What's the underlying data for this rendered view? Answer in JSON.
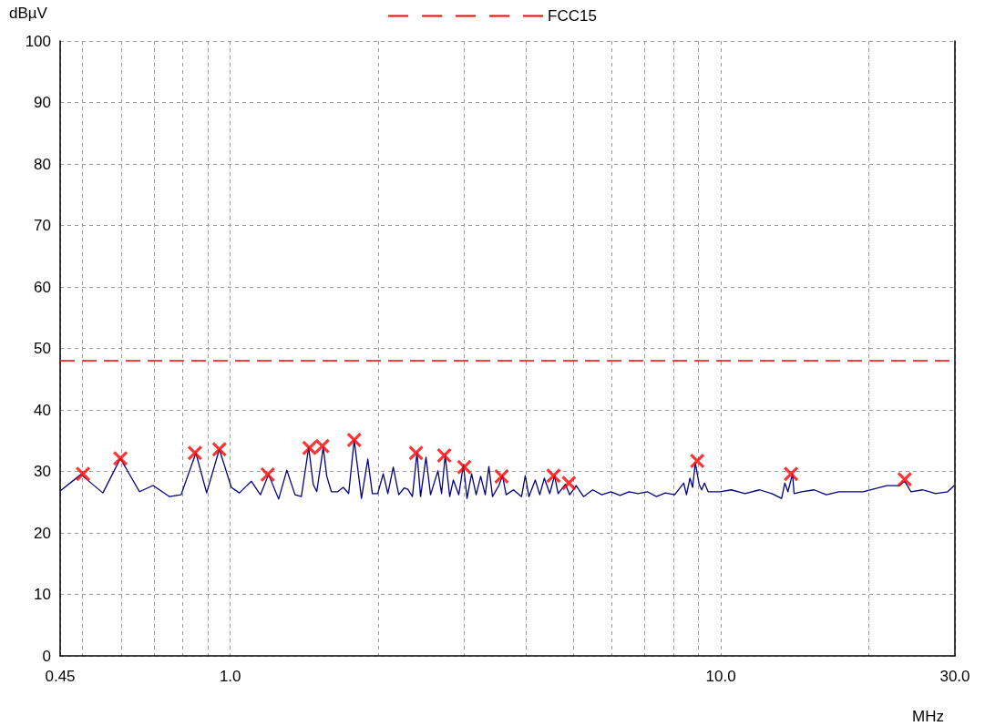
{
  "chart_data": {
    "type": "line",
    "xlabel": "MHz",
    "ylabel": "dBµV",
    "log": "x",
    "grid": true,
    "legend": "top",
    "marker": "none",
    "line_style": "solid",
    "xlim": [
      0.45,
      30
    ],
    "ylim": [
      0,
      100
    ],
    "xticks": [
      {
        "value": 0.45,
        "label": "0.45"
      },
      {
        "value": 0.5,
        "label": null
      },
      {
        "value": 0.6,
        "label": null
      },
      {
        "value": 0.7,
        "label": null
      },
      {
        "value": 0.8,
        "label": null
      },
      {
        "value": 0.9,
        "label": null
      },
      {
        "value": 1,
        "label": "1.0"
      },
      {
        "value": 2,
        "label": null
      },
      {
        "value": 3,
        "label": null
      },
      {
        "value": 4,
        "label": null
      },
      {
        "value": 5,
        "label": null
      },
      {
        "value": 6,
        "label": null
      },
      {
        "value": 7,
        "label": null
      },
      {
        "value": 8,
        "label": null
      },
      {
        "value": 9,
        "label": null
      },
      {
        "value": 10,
        "label": "10.0"
      },
      {
        "value": 20,
        "label": null
      },
      {
        "value": 30,
        "label": "30.0"
      }
    ],
    "yticks": [
      0,
      10,
      20,
      30,
      40,
      50,
      60,
      70,
      80,
      90,
      100
    ],
    "ref_lines": [
      {
        "axis": "y",
        "value": 48,
        "label": "FCC15",
        "color": "#ff0000",
        "line_style": "dashed"
      }
    ],
    "series": [
      {
        "color": "#000080",
        "x": [
          0.45,
          0.496,
          0.55,
          0.597,
          0.653,
          0.696,
          0.752,
          0.794,
          0.851,
          0.895,
          0.95,
          1.005,
          1.044,
          1.104,
          1.152,
          1.197,
          1.255,
          1.304,
          1.355,
          1.396,
          1.445,
          1.476,
          1.501,
          1.547,
          1.573,
          1.607,
          1.656,
          1.699,
          1.743,
          1.789,
          1.851,
          1.907,
          1.948,
          1.998,
          2.05,
          2.095,
          2.149,
          2.205,
          2.262,
          2.301,
          2.351,
          2.402,
          2.443,
          2.506,
          2.56,
          2.65,
          2.696,
          2.742,
          2.801,
          2.849,
          2.923,
          2.987,
          3.038,
          3.104,
          3.171,
          3.239,
          3.309,
          3.366,
          3.424,
          3.528,
          3.588,
          3.65,
          3.777,
          3.924,
          3.993,
          4.062,
          4.185,
          4.275,
          4.367,
          4.48,
          4.58,
          4.66,
          4.82,
          4.92,
          5.07,
          5.25,
          5.48,
          5.72,
          5.97,
          6.23,
          6.5,
          6.78,
          7.08,
          7.39,
          7.71,
          8.05,
          8.4,
          8.51,
          8.65,
          8.76,
          8.87,
          9.03,
          9.14,
          9.26,
          9.42,
          9.96,
          10.5,
          11.2,
          12.0,
          12.7,
          13.3,
          13.5,
          13.7,
          14.0,
          14.1,
          14.6,
          15.5,
          16.4,
          17.4,
          18.4,
          19.5,
          20.9,
          21.8,
          23.1,
          23.7,
          24.4,
          25.8,
          27.4,
          29.0,
          29.9
        ],
        "values": [
          26.8,
          29.5,
          26.5,
          32.1,
          26.7,
          27.7,
          25.9,
          26.2,
          33.0,
          26.5,
          33.6,
          27.4,
          26.5,
          28.4,
          26.2,
          29.5,
          25.5,
          30.2,
          26.2,
          25.9,
          33.9,
          27.9,
          26.7,
          33.9,
          29.2,
          26.7,
          26.7,
          27.4,
          26.4,
          35.1,
          25.6,
          32.0,
          26.4,
          26.4,
          29.6,
          26.4,
          30.7,
          26.2,
          27.3,
          27.1,
          25.9,
          33.0,
          25.9,
          32.3,
          26.2,
          30.1,
          26.4,
          32.6,
          25.9,
          28.6,
          26.2,
          31.1,
          25.6,
          29.6,
          26.2,
          29.2,
          26.2,
          30.8,
          25.9,
          27.7,
          29.3,
          26.2,
          27.0,
          25.9,
          29.3,
          25.9,
          28.6,
          26.2,
          28.9,
          26.4,
          29.3,
          26.4,
          27.9,
          26.2,
          27.7,
          25.9,
          27.0,
          26.2,
          26.7,
          26.1,
          26.7,
          26.4,
          26.7,
          25.9,
          26.5,
          26.2,
          28.1,
          26.2,
          28.9,
          27.4,
          31.4,
          27.9,
          27.0,
          28.1,
          26.7,
          26.7,
          27.0,
          26.4,
          27.0,
          26.4,
          25.6,
          28.1,
          26.7,
          29.6,
          26.4,
          26.7,
          27.0,
          26.2,
          26.7,
          26.7,
          26.7,
          27.3,
          27.7,
          27.7,
          28.4,
          26.7,
          27.0,
          26.4,
          26.7,
          27.7
        ]
      },
      {
        "type": "scatter",
        "marker": "cross",
        "color": "#ff0000",
        "x": [
          0.501,
          0.597,
          0.847,
          0.95,
          1.192,
          1.45,
          1.54,
          1.789,
          2.391,
          2.73,
          2.999,
          3.573,
          4.56,
          4.9,
          8.95,
          13.9,
          23.7
        ],
        "values": [
          29.6,
          32.1,
          33.0,
          33.6,
          29.5,
          33.8,
          34.1,
          35.1,
          33.0,
          32.6,
          30.7,
          29.2,
          29.3,
          28.1,
          31.7,
          29.6,
          28.7
        ]
      }
    ]
  }
}
